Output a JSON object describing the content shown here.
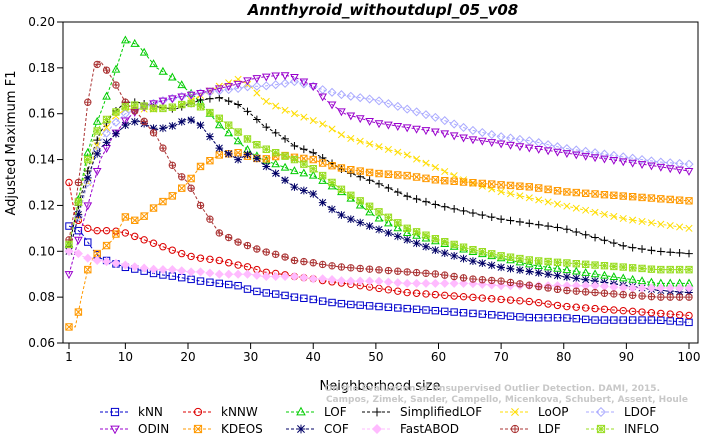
{
  "chart_data": {
    "type": "line",
    "title": "Annthyroid_withoutdupl_05_v08",
    "xlabel": "Neighborhood size",
    "ylabel": "Adjusted Maximum F1",
    "xlim": [
      1,
      100
    ],
    "ylim": [
      0.06,
      0.2
    ],
    "x_ticks": [
      1,
      10,
      20,
      30,
      40,
      50,
      60,
      70,
      80,
      90,
      100
    ],
    "y_ticks": [
      0.06,
      0.08,
      0.1,
      0.12,
      0.14,
      0.16,
      0.18,
      0.2
    ],
    "x_tick_labels": [
      "1",
      "10",
      "20",
      "30",
      "40",
      "50",
      "60",
      "70",
      "80",
      "90",
      "100"
    ],
    "y_tick_labels": [
      "0.06",
      "0.08",
      "0.10",
      "0.12",
      "0.14",
      "0.16",
      "0.18",
      "0.20"
    ],
    "grid": false,
    "legend_position": "bottom",
    "credit": [
      "Campos, Zimek, Sander, Campello, Micenkova, Schubert, Assent, Houle",
      "On the Evaluation of Unsupervised Outlier Detection. DAMI, 2015."
    ],
    "x_anchors": [
      1,
      2,
      3,
      4,
      5,
      6,
      8,
      10,
      12,
      15,
      18,
      20,
      22,
      25,
      28,
      30,
      32,
      35,
      37,
      40,
      42,
      45,
      50,
      55,
      60,
      65,
      70,
      75,
      80,
      85,
      90,
      95,
      100
    ],
    "series": [
      {
        "name": "kNN",
        "color": "#0000cc",
        "marker": "square",
        "values": [
          0.111,
          0.11,
          0.108,
          0.104,
          0.1,
          0.097,
          0.095,
          0.093,
          0.092,
          0.09,
          0.089,
          0.088,
          0.087,
          0.086,
          0.085,
          0.083,
          0.082,
          0.081,
          0.08,
          0.079,
          0.078,
          0.077,
          0.076,
          0.075,
          0.074,
          0.073,
          0.072,
          0.071,
          0.071,
          0.07,
          0.07,
          0.07,
          0.069
        ]
      },
      {
        "name": "kNNW",
        "color": "#dd0000",
        "marker": "circle",
        "values": [
          0.13,
          0.115,
          0.112,
          0.11,
          0.109,
          0.109,
          0.109,
          0.108,
          0.106,
          0.103,
          0.1,
          0.098,
          0.097,
          0.096,
          0.094,
          0.093,
          0.091,
          0.09,
          0.089,
          0.088,
          0.087,
          0.086,
          0.084,
          0.082,
          0.081,
          0.08,
          0.079,
          0.078,
          0.076,
          0.075,
          0.074,
          0.073,
          0.072
        ]
      },
      {
        "name": "LOF",
        "color": "#00cc00",
        "marker": "triangle-up",
        "values": [
          0.103,
          0.115,
          0.13,
          0.143,
          0.153,
          0.16,
          0.175,
          0.192,
          0.19,
          0.18,
          0.175,
          0.17,
          0.165,
          0.155,
          0.148,
          0.143,
          0.14,
          0.137,
          0.135,
          0.133,
          0.13,
          0.125,
          0.115,
          0.108,
          0.104,
          0.1,
          0.097,
          0.094,
          0.092,
          0.09,
          0.088,
          0.086,
          0.086
        ]
      },
      {
        "name": "SimplifiedLOF",
        "color": "#000000",
        "marker": "plus",
        "values": [
          0.102,
          0.115,
          0.125,
          0.135,
          0.145,
          0.152,
          0.16,
          0.165,
          0.165,
          0.163,
          0.162,
          0.164,
          0.166,
          0.167,
          0.164,
          0.16,
          0.155,
          0.15,
          0.146,
          0.143,
          0.14,
          0.135,
          0.13,
          0.124,
          0.12,
          0.117,
          0.114,
          0.112,
          0.11,
          0.106,
          0.102,
          0.1,
          0.099
        ]
      },
      {
        "name": "LoOP",
        "color": "#ffdd00",
        "marker": "x",
        "values": [
          0.1,
          0.11,
          0.12,
          0.13,
          0.142,
          0.15,
          0.158,
          0.162,
          0.162,
          0.162,
          0.163,
          0.165,
          0.168,
          0.172,
          0.175,
          0.172,
          0.166,
          0.162,
          0.16,
          0.157,
          0.155,
          0.15,
          0.146,
          0.142,
          0.136,
          0.13,
          0.126,
          0.123,
          0.12,
          0.117,
          0.114,
          0.112,
          0.11
        ]
      },
      {
        "name": "LDOF",
        "color": "#aaaaff",
        "marker": "diamond",
        "values": [
          0.1,
          0.11,
          0.12,
          0.13,
          0.14,
          0.148,
          0.155,
          0.16,
          0.162,
          0.165,
          0.167,
          0.168,
          0.169,
          0.17,
          0.171,
          0.172,
          0.172,
          0.173,
          0.174,
          0.172,
          0.17,
          0.168,
          0.166,
          0.162,
          0.158,
          0.153,
          0.15,
          0.148,
          0.145,
          0.143,
          0.141,
          0.139,
          0.138
        ]
      },
      {
        "name": "ODIN",
        "color": "#9900cc",
        "marker": "triangle-down",
        "values": [
          0.09,
          0.1,
          0.11,
          0.12,
          0.13,
          0.14,
          0.15,
          0.157,
          0.162,
          0.165,
          0.167,
          0.168,
          0.169,
          0.171,
          0.173,
          0.175,
          0.176,
          0.177,
          0.176,
          0.172,
          0.166,
          0.16,
          0.156,
          0.154,
          0.152,
          0.149,
          0.147,
          0.145,
          0.143,
          0.141,
          0.139,
          0.137,
          0.135
        ]
      },
      {
        "name": "KDEOS",
        "color": "#ff9900",
        "marker": "square-x",
        "values": [
          0.067,
          0.067,
          0.08,
          0.092,
          0.098,
          0.1,
          0.105,
          0.115,
          0.113,
          0.12,
          0.125,
          0.13,
          0.137,
          0.142,
          0.143,
          0.141,
          0.14,
          0.142,
          0.141,
          0.14,
          0.138,
          0.136,
          0.134,
          0.133,
          0.131,
          0.13,
          0.129,
          0.128,
          0.126,
          0.125,
          0.124,
          0.123,
          0.122
        ]
      },
      {
        "name": "COF",
        "color": "#000066",
        "marker": "asterisk",
        "values": [
          0.1,
          0.11,
          0.122,
          0.132,
          0.14,
          0.145,
          0.15,
          0.155,
          0.157,
          0.153,
          0.155,
          0.158,
          0.155,
          0.145,
          0.14,
          0.143,
          0.138,
          0.132,
          0.128,
          0.125,
          0.12,
          0.115,
          0.11,
          0.105,
          0.1,
          0.096,
          0.093,
          0.091,
          0.089,
          0.087,
          0.085,
          0.083,
          0.082
        ]
      },
      {
        "name": "FastABOD",
        "color": "#ffbbff",
        "marker": "diamond-filled",
        "values": [
          0.1,
          0.1,
          0.098,
          0.097,
          0.096,
          0.096,
          0.095,
          0.094,
          0.093,
          0.092,
          0.092,
          0.091,
          0.091,
          0.09,
          0.09,
          0.09,
          0.089,
          0.089,
          0.089,
          0.088,
          0.088,
          0.087,
          0.087,
          0.086,
          0.086,
          0.086,
          0.085,
          0.085,
          0.085,
          0.085,
          0.084,
          0.084,
          0.084
        ]
      },
      {
        "name": "LDF",
        "color": "#aa3333",
        "marker": "circle-plus",
        "values": [
          0.105,
          0.12,
          0.14,
          0.165,
          0.18,
          0.183,
          0.175,
          0.165,
          0.16,
          0.15,
          0.135,
          0.13,
          0.12,
          0.108,
          0.104,
          0.102,
          0.1,
          0.098,
          0.096,
          0.095,
          0.094,
          0.093,
          0.092,
          0.091,
          0.09,
          0.088,
          0.087,
          0.085,
          0.083,
          0.082,
          0.081,
          0.08,
          0.08
        ]
      },
      {
        "name": "INFLO",
        "color": "#99dd22",
        "marker": "square-star",
        "values": [
          0.103,
          0.115,
          0.128,
          0.14,
          0.15,
          0.155,
          0.16,
          0.163,
          0.164,
          0.162,
          0.163,
          0.165,
          0.163,
          0.158,
          0.152,
          0.148,
          0.145,
          0.142,
          0.14,
          0.136,
          0.132,
          0.126,
          0.118,
          0.11,
          0.105,
          0.101,
          0.098,
          0.096,
          0.095,
          0.094,
          0.093,
          0.092,
          0.092
        ]
      }
    ]
  }
}
